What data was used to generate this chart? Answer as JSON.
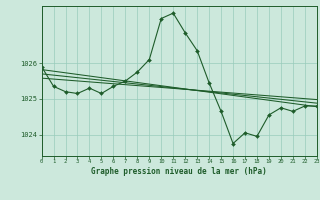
{
  "bg_color": "#cce8dc",
  "grid_color": "#99ccbb",
  "line_color": "#1e5c2a",
  "title": "Graphe pression niveau de la mer (hPa)",
  "xlim": [
    0,
    23
  ],
  "ylim": [
    1023.4,
    1027.6
  ],
  "yticks": [
    1024,
    1025,
    1026
  ],
  "xticks": [
    0,
    1,
    2,
    3,
    4,
    5,
    6,
    7,
    8,
    9,
    10,
    11,
    12,
    13,
    14,
    15,
    16,
    17,
    18,
    19,
    20,
    21,
    22,
    23
  ],
  "flat_lines": [
    {
      "x0": 0,
      "y0": 1025.82,
      "x1": 23,
      "y1": 1024.78
    },
    {
      "x0": 0,
      "y0": 1025.7,
      "x1": 23,
      "y1": 1024.88
    },
    {
      "x0": 0,
      "y0": 1025.58,
      "x1": 23,
      "y1": 1024.98
    }
  ],
  "main_line": {
    "x": [
      0,
      1,
      2,
      3,
      4,
      5,
      6,
      7,
      8,
      9,
      10,
      11,
      12,
      13,
      14,
      15,
      16,
      17,
      18,
      19,
      20,
      21,
      22,
      23
    ],
    "y": [
      1025.9,
      1025.35,
      1025.2,
      1025.15,
      1025.3,
      1025.15,
      1025.35,
      1025.5,
      1025.75,
      1026.1,
      1027.25,
      1027.4,
      1026.85,
      1026.35,
      1025.45,
      1024.65,
      1023.75,
      1024.05,
      1023.95,
      1024.55,
      1024.75,
      1024.65,
      1024.8,
      1024.8
    ]
  }
}
